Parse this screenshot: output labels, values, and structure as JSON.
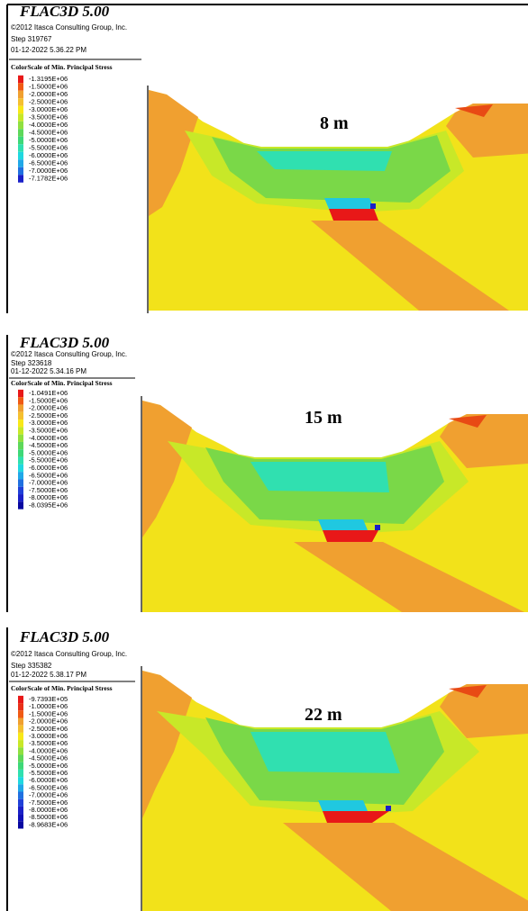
{
  "panels": [
    {
      "title": "FLAC3D 5.00",
      "copyright": "©2012 Itasca Consulting Group, Inc.",
      "step": "Step 319767",
      "date": "01-12-2022 5.36.22 PM",
      "colorscale_title": "ColorScale of Min. Principal Stress",
      "legend": [
        {
          "label": "-1.3195E+06",
          "color": "#e81818"
        },
        {
          "label": "-1.5000E+06",
          "color": "#f05a14"
        },
        {
          "label": "-2.0000E+06",
          "color": "#f0a030"
        },
        {
          "label": "-2.5000E+06",
          "color": "#f5c030"
        },
        {
          "label": "-3.0000E+06",
          "color": "#f8e818"
        },
        {
          "label": "-3.5000E+06",
          "color": "#c8e828"
        },
        {
          "label": "-4.0000E+06",
          "color": "#90e040"
        },
        {
          "label": "-4.5000E+06",
          "color": "#5ed85a"
        },
        {
          "label": "-5.0000E+06",
          "color": "#3ed878"
        },
        {
          "label": "-5.5000E+06",
          "color": "#30e0b0"
        },
        {
          "label": "-6.0000E+06",
          "color": "#20d8e0"
        },
        {
          "label": "-6.5000E+06",
          "color": "#20a8e8"
        },
        {
          "label": "-7.0000E+06",
          "color": "#2070e0"
        },
        {
          "label": "-7.1782E+06",
          "color": "#1a20c8"
        }
      ],
      "depth_label": "8 m"
    },
    {
      "title": "FLAC3D 5.00",
      "copyright": "©2012 Itasca Consulting Group, Inc.",
      "step": "Step 323618",
      "date": "01-12-2022 5.34.16 PM",
      "colorscale_title": "ColorScale of Min. Principal Stress",
      "legend": [
        {
          "label": "-1.0491E+06",
          "color": "#e81818"
        },
        {
          "label": "-1.5000E+06",
          "color": "#f05a14"
        },
        {
          "label": "-2.0000E+06",
          "color": "#f0a030"
        },
        {
          "label": "-2.5000E+06",
          "color": "#f5c030"
        },
        {
          "label": "-3.0000E+06",
          "color": "#f8e818"
        },
        {
          "label": "-3.5000E+06",
          "color": "#c8e828"
        },
        {
          "label": "-4.0000E+06",
          "color": "#90e040"
        },
        {
          "label": "-4.5000E+06",
          "color": "#5ed85a"
        },
        {
          "label": "-5.0000E+06",
          "color": "#3ed878"
        },
        {
          "label": "-5.5000E+06",
          "color": "#30e0b0"
        },
        {
          "label": "-6.0000E+06",
          "color": "#20d8e0"
        },
        {
          "label": "-6.5000E+06",
          "color": "#20a8e8"
        },
        {
          "label": "-7.0000E+06",
          "color": "#2070e0"
        },
        {
          "label": "-7.5000E+06",
          "color": "#2040d8"
        },
        {
          "label": "-8.0000E+06",
          "color": "#1a20c8"
        },
        {
          "label": "-8.0395E+06",
          "color": "#0808a0"
        }
      ],
      "depth_label": "15 m"
    },
    {
      "title": "FLAC3D 5.00",
      "copyright": "©2012 Itasca Consulting Group, Inc.",
      "step": "Step 335382",
      "date": "01-12-2022 5.38.17 PM",
      "colorscale_title": "ColorScale of Min. Principal Stress",
      "legend": [
        {
          "label": "-9.7393E+05",
          "color": "#e81818"
        },
        {
          "label": "-1.0000E+06",
          "color": "#e83018"
        },
        {
          "label": "-1.5000E+06",
          "color": "#f05a14"
        },
        {
          "label": "-2.0000E+06",
          "color": "#f0a030"
        },
        {
          "label": "-2.5000E+06",
          "color": "#f5c030"
        },
        {
          "label": "-3.0000E+06",
          "color": "#f8e818"
        },
        {
          "label": "-3.5000E+06",
          "color": "#c8e828"
        },
        {
          "label": "-4.0000E+06",
          "color": "#90e040"
        },
        {
          "label": "-4.5000E+06",
          "color": "#5ed85a"
        },
        {
          "label": "-5.0000E+06",
          "color": "#3ed878"
        },
        {
          "label": "-5.5000E+06",
          "color": "#30e0b0"
        },
        {
          "label": "-6.0000E+06",
          "color": "#20d8e0"
        },
        {
          "label": "-6.5000E+06",
          "color": "#20a8e8"
        },
        {
          "label": "-7.0000E+06",
          "color": "#2070e0"
        },
        {
          "label": "-7.5000E+06",
          "color": "#2040d8"
        },
        {
          "label": "-8.0000E+06",
          "color": "#1a20c8"
        },
        {
          "label": "-8.5000E+06",
          "color": "#1010b8"
        },
        {
          "label": "-8.9683E+06",
          "color": "#0808a0"
        }
      ],
      "depth_label": "22 m"
    }
  ]
}
